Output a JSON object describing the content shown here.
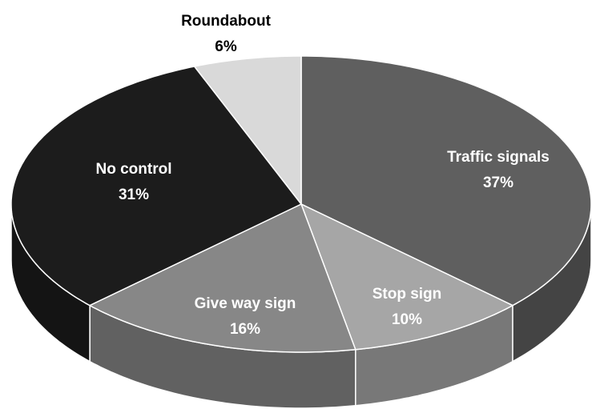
{
  "chart_data": {
    "type": "pie",
    "categories": [
      "Traffic signals",
      "Stop sign",
      "Give way sign",
      "No control",
      "Roundabout"
    ],
    "values": [
      37,
      10,
      16,
      31,
      6
    ],
    "value_labels": [
      "37%",
      "10%",
      "16%",
      "31%",
      "6%"
    ],
    "colors": [
      "#5f5f5f",
      "#a6a6a6",
      "#878787",
      "#1c1c1c",
      "#d9d9d9"
    ]
  }
}
